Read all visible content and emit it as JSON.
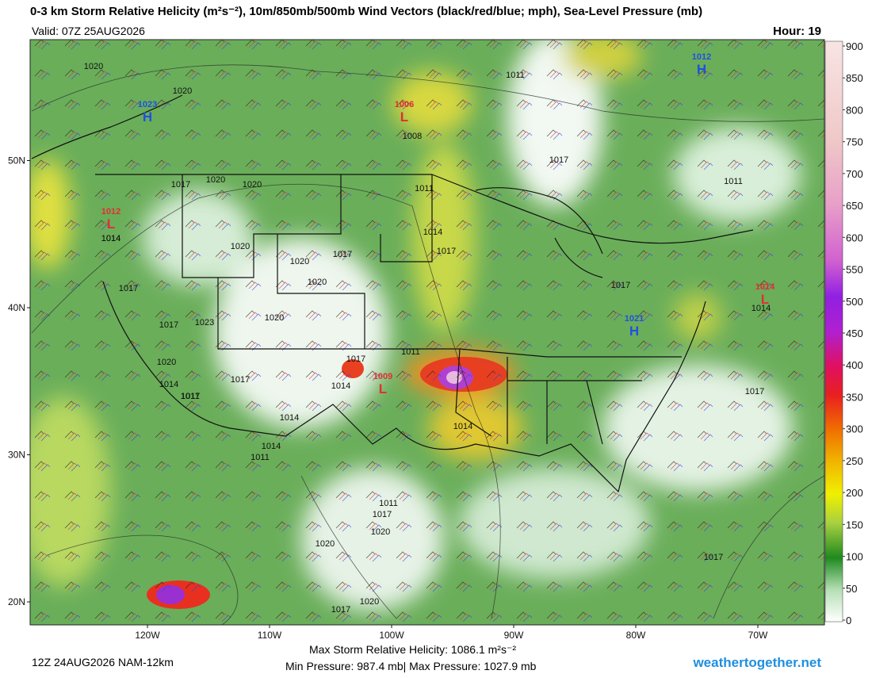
{
  "header": {
    "title": "0-3 km Storm Relative Helicity (m²s⁻²), 10m/850mb/500mb Wind Vectors (black/red/blue; mph), Sea-Level Pressure (mb)",
    "valid": "Valid: 07Z 25AUG2026",
    "hour": "Hour: 19"
  },
  "map": {
    "lat_ticks": [
      {
        "value": 50,
        "label": "50N"
      },
      {
        "value": 40,
        "label": "40N"
      },
      {
        "value": 30,
        "label": "30N"
      },
      {
        "value": 20,
        "label": "20N"
      }
    ],
    "lon_ticks": [
      {
        "value": -120,
        "label": "120W"
      },
      {
        "value": -110,
        "label": "110W"
      },
      {
        "value": -100,
        "label": "100W"
      },
      {
        "value": -90,
        "label": "90W"
      },
      {
        "value": -80,
        "label": "80W"
      },
      {
        "value": -70,
        "label": "70W"
      }
    ],
    "centers": [
      {
        "letter": "H",
        "value": 1023
      },
      {
        "letter": "H",
        "value": 1012
      },
      {
        "letter": "L",
        "value": 1006
      },
      {
        "letter": "L",
        "value": 1012
      },
      {
        "letter": "L",
        "value": 1014
      },
      {
        "letter": "H",
        "value": 1021
      },
      {
        "letter": "L",
        "value": 1009
      }
    ],
    "isobar_labels": [
      1020,
      1020,
      1017,
      1020,
      1020,
      1011,
      1017,
      1011,
      1011,
      1014,
      1017,
      1014,
      1017,
      1020,
      1020,
      1017,
      1020,
      1023,
      1017,
      1017,
      1020,
      1020,
      1014,
      1017,
      1011,
      1014,
      1017,
      1014,
      1014,
      1011,
      1014,
      1011,
      1014,
      1017,
      1020,
      1020,
      1017,
      1020,
      1017,
      1017,
      1017,
      1014,
      1008,
      1011
    ]
  },
  "colorbar": {
    "ticks": [
      0,
      50,
      100,
      150,
      200,
      250,
      300,
      350,
      400,
      450,
      500,
      550,
      600,
      650,
      700,
      750,
      800,
      850,
      900
    ]
  },
  "footer": {
    "run": "12Z 24AUG2026 NAM-12km",
    "max_srh": "Max Storm Relative Helicity: 1086.1 m²s⁻²",
    "pressure": "Min Pressure: 987.4 mb| Max Pressure: 1027.9 mb",
    "site": "weathertogether.net"
  }
}
